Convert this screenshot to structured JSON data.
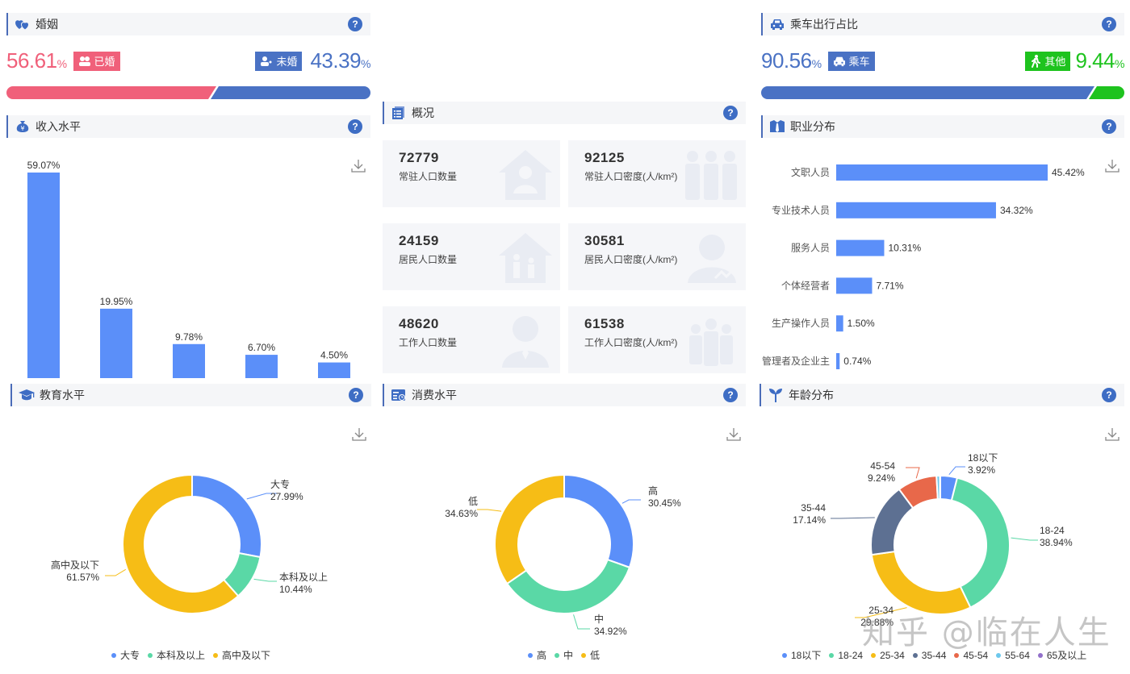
{
  "marriage": {
    "title": "婚姻",
    "married": {
      "value": "56.61",
      "unit": "%",
      "label": "已婚",
      "color": "#f0607a"
    },
    "unmarried": {
      "value": "43.39",
      "unit": "%",
      "label": "未婚",
      "color": "#4a72c4"
    }
  },
  "commute": {
    "title": "乘车出行占比",
    "car": {
      "value": "90.56",
      "unit": "%",
      "label": "乘车",
      "color": "#4a72c4"
    },
    "other": {
      "value": "9.44",
      "unit": "%",
      "label": "其他",
      "color": "#1ec31e"
    }
  },
  "overview": {
    "title": "概况",
    "cards": [
      {
        "value": "72779",
        "label": "常驻人口数量"
      },
      {
        "value": "92125",
        "label": "常驻人口密度(人/km²)"
      },
      {
        "value": "24159",
        "label": "居民人口数量"
      },
      {
        "value": "30581",
        "label": "居民人口密度(人/km²)"
      },
      {
        "value": "48620",
        "label": "工作人口数量"
      },
      {
        "value": "61538",
        "label": "工作人口密度(人/km²)"
      }
    ]
  },
  "income": {
    "title": "收入水平"
  },
  "occupation": {
    "title": "职业分布"
  },
  "education": {
    "title": "教育水平"
  },
  "consumption": {
    "title": "消费水平"
  },
  "age": {
    "title": "年龄分布"
  },
  "watermark": "知乎 @临在人生",
  "help_label": "?",
  "chart_data": [
    {
      "id": "income",
      "type": "bar",
      "title": "收入水平",
      "categories": [
        "",
        "",
        "",
        "",
        ""
      ],
      "values": [
        59.07,
        19.95,
        9.78,
        6.7,
        4.5
      ],
      "labels": [
        "59.07%",
        "19.95%",
        "9.78%",
        "6.70%",
        "4.50%"
      ],
      "color": "#5b8ff9",
      "grid": false
    },
    {
      "id": "occupation",
      "type": "bar",
      "orientation": "horizontal",
      "title": "职业分布",
      "categories": [
        "文职人员",
        "专业技术人员",
        "服务人员",
        "个体经营者",
        "生产操作人员",
        "管理者及企业主"
      ],
      "values": [
        45.42,
        34.32,
        10.31,
        7.71,
        1.5,
        0.74
      ],
      "labels": [
        "45.42%",
        "34.32%",
        "10.31%",
        "7.71%",
        "1.50%",
        "0.74%"
      ],
      "color": "#5b8ff9",
      "grid": false
    },
    {
      "id": "education",
      "type": "pie",
      "donut": true,
      "title": "教育水平",
      "categories": [
        "大专",
        "本科及以上",
        "高中及以下"
      ],
      "values": [
        27.99,
        10.44,
        61.57
      ],
      "labels": [
        "27.99%",
        "10.44%",
        "61.57%"
      ],
      "colors": [
        "#5b8ff9",
        "#5ad8a6",
        "#f6bd16"
      ],
      "legend_position": "bottom"
    },
    {
      "id": "consumption",
      "type": "pie",
      "donut": true,
      "title": "消费水平",
      "categories": [
        "高",
        "中",
        "低"
      ],
      "values": [
        30.45,
        34.92,
        34.63
      ],
      "labels": [
        "30.45%",
        "34.92%",
        "34.63%"
      ],
      "colors": [
        "#5b8ff9",
        "#5ad8a6",
        "#f6bd16"
      ],
      "legend_position": "bottom"
    },
    {
      "id": "age",
      "type": "pie",
      "donut": true,
      "title": "年龄分布",
      "categories": [
        "18以下",
        "18-24",
        "25-34",
        "35-44",
        "45-54",
        "55-64",
        "65及以上"
      ],
      "values": [
        3.92,
        38.94,
        29.88,
        17.14,
        9.24,
        0.78,
        0.1
      ],
      "labels": [
        "3.92%",
        "38.94%",
        "29.88%",
        "17.14%",
        "9.24%",
        "",
        ""
      ],
      "colors": [
        "#5b8ff9",
        "#5ad8a6",
        "#f6bd16",
        "#5d7092",
        "#e8684a",
        "#6dc8ec",
        "#9270ca"
      ],
      "legend_position": "bottom"
    },
    {
      "id": "marriage",
      "type": "bar",
      "orientation": "stacked-horizontal",
      "title": "婚姻",
      "categories": [
        "已婚",
        "未婚"
      ],
      "values": [
        56.61,
        43.39
      ],
      "colors": [
        "#f0607a",
        "#4a72c4"
      ]
    },
    {
      "id": "commute",
      "type": "bar",
      "orientation": "stacked-horizontal",
      "title": "乘车出行占比",
      "categories": [
        "乘车",
        "其他"
      ],
      "values": [
        90.56,
        9.44
      ],
      "colors": [
        "#4a72c4",
        "#1ec31e"
      ]
    }
  ]
}
